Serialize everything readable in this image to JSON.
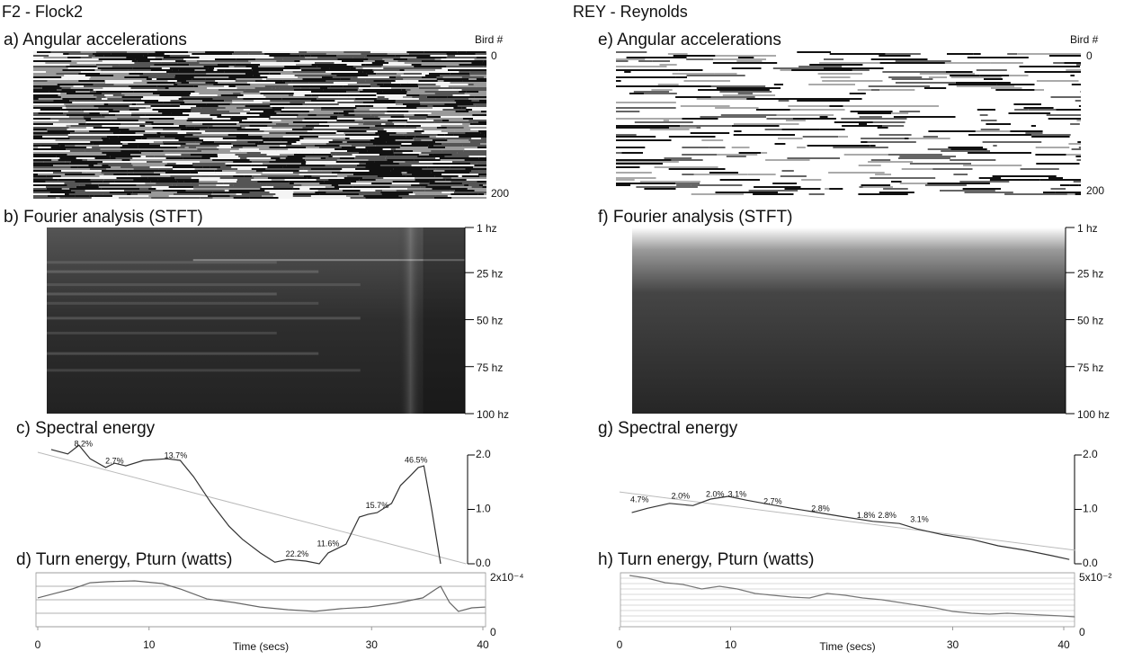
{
  "headers": [
    "F2 - Flock2",
    "REY - Reynolds"
  ],
  "chart_data": [
    {
      "type": "heatmap",
      "title": "a) Angular accelerations",
      "y_label": "Bird #",
      "ylim": [
        0,
        200
      ],
      "yticks": [
        0,
        200
      ]
    },
    {
      "type": "heatmap",
      "title": "b) Fourier analysis (STFT)",
      "ylim": [
        1,
        100
      ],
      "yticks": [
        {
          "value": 1,
          "label": "1 hz"
        },
        {
          "value": 25,
          "label": "25 hz"
        },
        {
          "value": 50,
          "label": "50 hz"
        },
        {
          "value": 75,
          "label": "75 hz"
        },
        {
          "value": 100,
          "label": "100 hz"
        }
      ]
    },
    {
      "type": "line",
      "title": "c) Spectral energy",
      "xlim": [
        0,
        40
      ],
      "ylim": [
        0,
        2
      ],
      "yticks": [
        {
          "value": 0,
          "label": "0.0"
        },
        {
          "value": 1,
          "label": "1.0"
        },
        {
          "value": 2,
          "label": "2.0"
        }
      ],
      "series": [
        {
          "color": "#333333",
          "x": [
            1.2,
            2.7,
            3.7,
            4.7,
            6.1,
            6.9,
            7.9,
            9.5,
            11.6,
            12.8,
            14.0,
            15.6,
            17.2,
            18.4,
            20.0,
            21.3,
            22.5,
            24.1,
            25.3,
            26.1,
            26.9,
            27.7,
            28.9,
            29.7,
            30.5,
            31.8,
            32.6,
            33.4,
            34.2,
            34.7,
            35.4,
            36.2
          ],
          "values": [
            2.1,
            2.02,
            2.18,
            1.93,
            1.77,
            1.85,
            1.8,
            1.9,
            1.93,
            1.9,
            1.6,
            1.11,
            0.69,
            0.45,
            0.2,
            0.03,
            0.08,
            0.05,
            0.0,
            0.2,
            0.28,
            0.36,
            0.86,
            0.91,
            0.94,
            1.11,
            1.44,
            1.6,
            1.77,
            1.8,
            1.0,
            0.0
          ]
        }
      ],
      "trend": {
        "color": "#bbbbbb",
        "x": [
          0,
          38.5
        ],
        "values": [
          2.05,
          0
        ]
      },
      "annotations": [
        {
          "x": 4.1,
          "y": 2.2,
          "text": "8.2%"
        },
        {
          "x": 6.9,
          "y": 1.88,
          "text": "2.7%"
        },
        {
          "x": 12.4,
          "y": 1.98,
          "text": "13.7%"
        },
        {
          "x": 23.3,
          "y": 0.17,
          "text": "22.2%"
        },
        {
          "x": 26.1,
          "y": 0.36,
          "text": "11.6%"
        },
        {
          "x": 30.5,
          "y": 1.06,
          "text": "15.7%"
        },
        {
          "x": 34.0,
          "y": 1.9,
          "text": "46.5%"
        }
      ]
    },
    {
      "type": "line",
      "title": "d) Turn energy, Pturn (watts)",
      "x_label": "Time (secs)",
      "xlim": [
        0,
        40
      ],
      "xticks": [
        0,
        10,
        30,
        40
      ],
      "ylim": [
        0,
        0.0002
      ],
      "yticks": [
        0,
        {
          "value": 0.0002,
          "label": "2x10⁻⁴"
        }
      ],
      "grid_lines": [
        0,
        5e-05,
        0.0001,
        0.00015,
        0.0002
      ],
      "series": [
        {
          "color": "#666666",
          "x": [
            0,
            1.5,
            3.1,
            4.7,
            6.3,
            8.7,
            11.2,
            12.8,
            15.2,
            17.6,
            20.0,
            22.5,
            24.9,
            27.3,
            29.7,
            32.2,
            34.6,
            35.8,
            36.2,
            37.0,
            37.8,
            39.0,
            40.2
          ],
          "values": [
            0.000107,
            0.000123,
            0.00014,
            0.000163,
            0.000167,
            0.00017,
            0.00016,
            0.00014,
            0.000103,
            9e-05,
            7.3e-05,
            6.3e-05,
            5.7e-05,
            6.7e-05,
            7.3e-05,
            8.7e-05,
            0.000107,
            0.00014,
            0.00015,
            9e-05,
            5.7e-05,
            7e-05,
            7.3e-05
          ]
        }
      ]
    },
    {
      "type": "heatmap",
      "title": "e) Angular accelerations",
      "y_label": "Bird #",
      "ylim": [
        0,
        200
      ],
      "yticks": [
        0,
        200
      ]
    },
    {
      "type": "heatmap",
      "title": "f) Fourier analysis (STFT)",
      "ylim": [
        1,
        100
      ],
      "yticks": [
        {
          "value": 1,
          "label": "1 hz"
        },
        {
          "value": 25,
          "label": "25 hz"
        },
        {
          "value": 50,
          "label": "50 hz"
        },
        {
          "value": 75,
          "label": "75 hz"
        },
        {
          "value": 100,
          "label": "100 hz"
        }
      ]
    },
    {
      "type": "line",
      "title": "g) Spectral energy",
      "xlim": [
        0,
        40
      ],
      "ylim": [
        0,
        2
      ],
      "yticks": [
        {
          "value": 0,
          "label": "0.0"
        },
        {
          "value": 1,
          "label": "1.0"
        },
        {
          "value": 2,
          "label": "2.0"
        }
      ],
      "series": [
        {
          "color": "#333333",
          "x": [
            1.1,
            2.5,
            4.5,
            6.6,
            8.2,
            9.8,
            11.4,
            13.0,
            15.5,
            17.9,
            20.3,
            22.8,
            25.2,
            26.8,
            29.2,
            31.7,
            34.1,
            36.5,
            38.9,
            40.5
          ],
          "values": [
            0.94,
            1.02,
            1.11,
            1.07,
            1.19,
            1.24,
            1.17,
            1.11,
            1.02,
            0.94,
            0.86,
            0.78,
            0.74,
            0.64,
            0.53,
            0.45,
            0.33,
            0.25,
            0.15,
            0.08
          ]
        }
      ],
      "trend": {
        "color": "#bbbbbb",
        "x": [
          0,
          41.0
        ],
        "values": [
          1.32,
          0.25
        ]
      },
      "annotations": [
        {
          "x": 1.8,
          "y": 1.17,
          "text": "4.7%"
        },
        {
          "x": 5.5,
          "y": 1.24,
          "text": "2.0%"
        },
        {
          "x": 8.6,
          "y": 1.27,
          "text": "2.0%"
        },
        {
          "x": 10.6,
          "y": 1.27,
          "text": "3.1%"
        },
        {
          "x": 13.8,
          "y": 1.14,
          "text": "2.7%"
        },
        {
          "x": 18.1,
          "y": 1.01,
          "text": "2.8%"
        },
        {
          "x": 22.2,
          "y": 0.88,
          "text": "1.8%"
        },
        {
          "x": 24.1,
          "y": 0.88,
          "text": "2.8%"
        },
        {
          "x": 27.0,
          "y": 0.81,
          "text": "3.1%"
        }
      ]
    },
    {
      "type": "line",
      "title": "h) Turn energy, Pturn (watts)",
      "x_label": "Time (secs)",
      "xlim": [
        0,
        40
      ],
      "xticks": [
        0,
        10,
        30,
        40
      ],
      "ylim": [
        0,
        0.05
      ],
      "yticks": [
        0,
        {
          "value": 0.05,
          "label": "5x10⁻²"
        }
      ],
      "grid_lines": [
        0,
        0.005,
        0.01,
        0.015,
        0.02,
        0.025,
        0.03,
        0.035,
        0.04,
        0.045,
        0.05
      ],
      "series": [
        {
          "color": "#777777",
          "x": [
            0.9,
            2.5,
            4.1,
            5.7,
            7.4,
            9.0,
            10.6,
            12.2,
            13.8,
            15.5,
            17.1,
            18.7,
            20.3,
            21.9,
            23.6,
            25.2,
            26.8,
            28.4,
            30.0,
            31.7,
            33.3,
            34.9,
            36.5,
            38.1,
            39.8,
            41.0
          ],
          "values": [
            0.0475,
            0.045,
            0.0408,
            0.0392,
            0.035,
            0.0375,
            0.035,
            0.0308,
            0.0292,
            0.0275,
            0.0267,
            0.0308,
            0.0292,
            0.0267,
            0.025,
            0.0225,
            0.02,
            0.0175,
            0.0142,
            0.0125,
            0.0117,
            0.0125,
            0.0117,
            0.0108,
            0.01,
            0.0092
          ]
        }
      ]
    }
  ]
}
